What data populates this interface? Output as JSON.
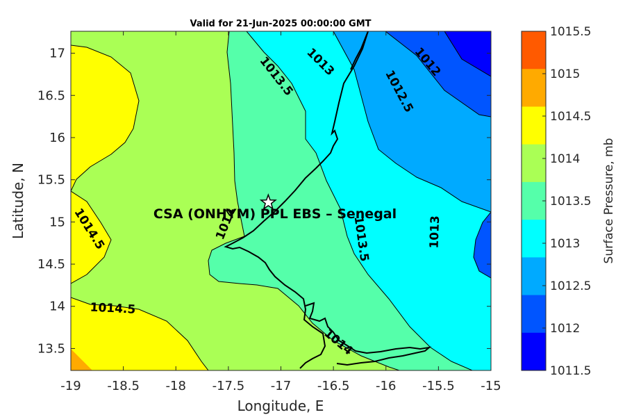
{
  "title": "Valid for 21-Jun-2025 00:00:00 GMT",
  "x_axis": {
    "label": "Longitude, E",
    "ticks": [
      "-19",
      "-18.5",
      "-18",
      "-17.5",
      "-17",
      "-16.5",
      "-16",
      "-15.5",
      "-15"
    ]
  },
  "y_axis": {
    "label": "Latitude, N",
    "ticks": [
      "17",
      "16.5",
      "16",
      "15.5",
      "15",
      "14.5",
      "14",
      "13.5"
    ]
  },
  "colorbar": {
    "label": "Surface Pressure, mb",
    "levels": [
      "1015.5",
      "1015",
      "1014.5",
      "1014",
      "1013.5",
      "1013",
      "1012.5",
      "1012",
      "1011.5"
    ],
    "colors": [
      "#ff5a00",
      "#ffaa00",
      "#ffff00",
      "#aaff55",
      "#55ffaa",
      "#00ffff",
      "#00aaff",
      "#0055ff",
      "#0000ff"
    ]
  },
  "station": {
    "label": "CSA (ONHYM) PPL EBS  – Senegal",
    "lon": -17.12,
    "lat": 15.23
  },
  "contour_labels": [
    {
      "text": "1013",
      "lon": -16.62,
      "lat": 16.9,
      "rot": 45
    },
    {
      "text": "1012",
      "lon": -15.6,
      "lat": 16.9,
      "rot": 50
    },
    {
      "text": "1013.5",
      "lon": -17.04,
      "lat": 16.73,
      "rot": 52
    },
    {
      "text": "1012.5",
      "lon": -15.87,
      "lat": 16.55,
      "rot": 62
    },
    {
      "text": "1014.5",
      "lon": -18.82,
      "lat": 14.92,
      "rot": 58
    },
    {
      "text": "1014",
      "lon": -17.53,
      "lat": 14.98,
      "rot": -68
    },
    {
      "text": "1013.5",
      "lon": -16.23,
      "lat": 14.8,
      "rot": 82
    },
    {
      "text": "1013",
      "lon": -15.54,
      "lat": 14.88,
      "rot": -88
    },
    {
      "text": "1014.5",
      "lon": -18.6,
      "lat": 13.98,
      "rot": 3
    },
    {
      "text": "1014",
      "lon": -16.45,
      "lat": 13.58,
      "rot": 40
    }
  ]
}
